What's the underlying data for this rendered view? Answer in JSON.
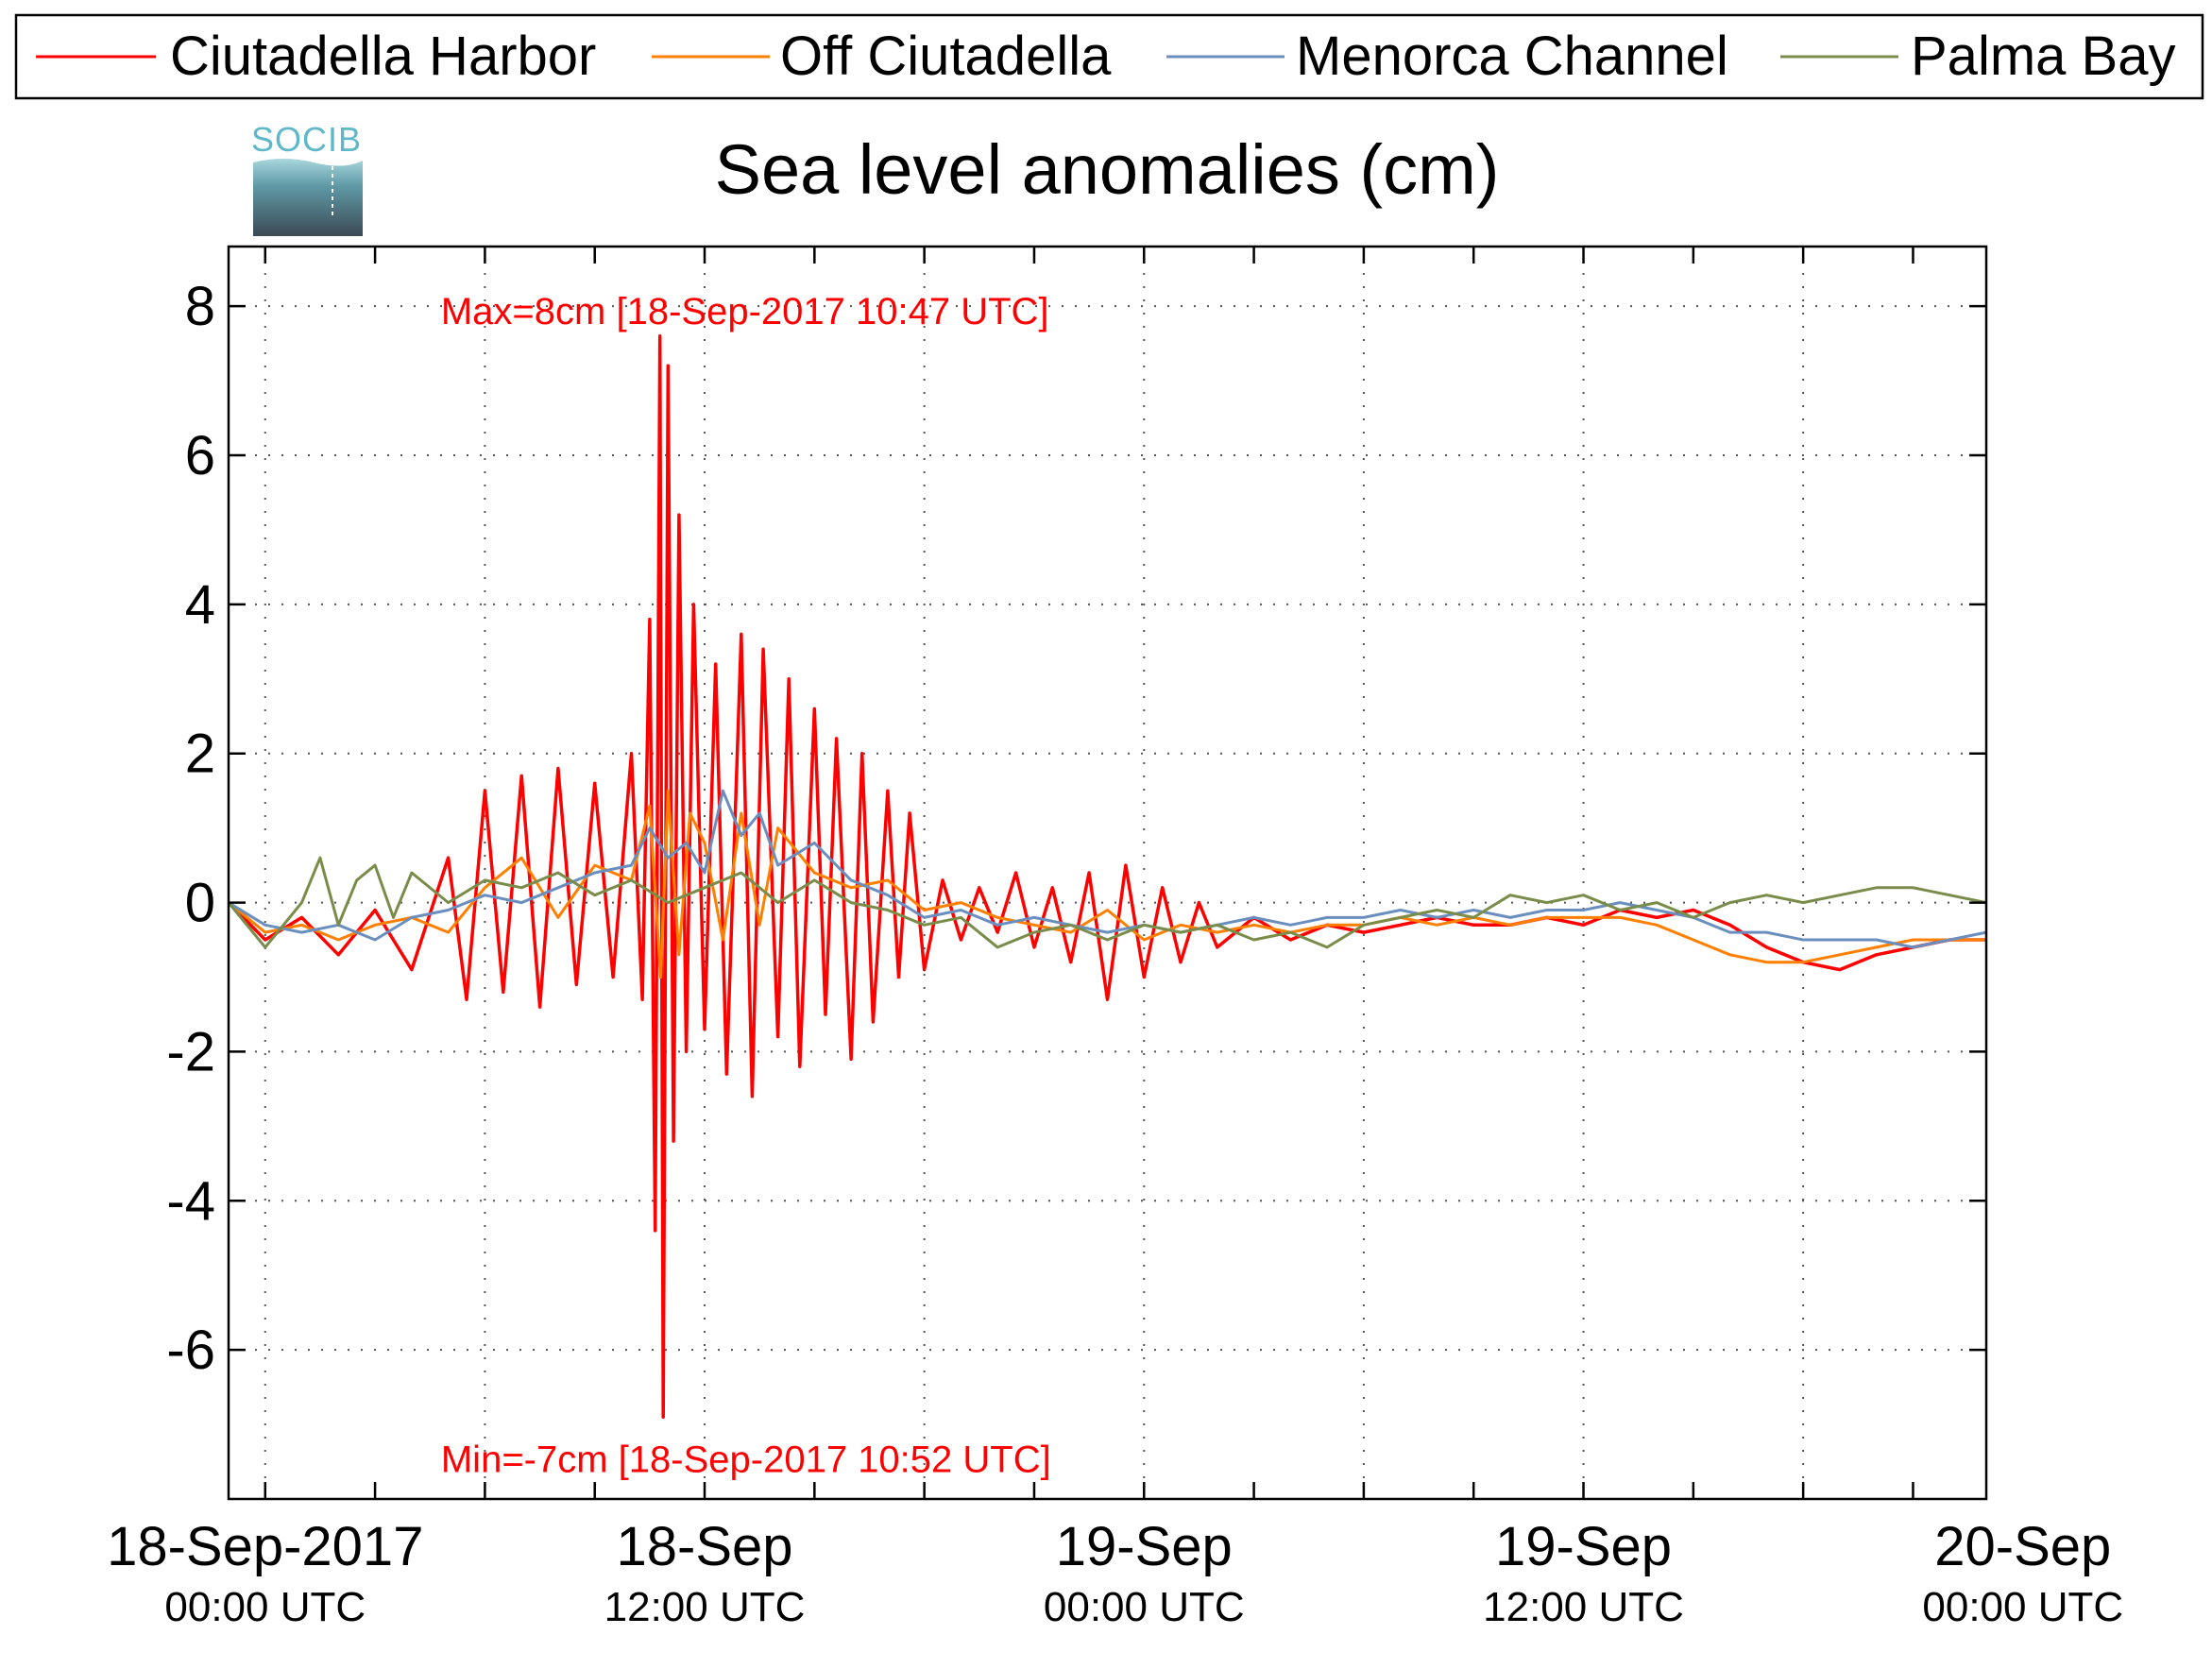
{
  "chart_data": {
    "type": "line",
    "title": "Sea level anomalies (cm)",
    "xlabel": "",
    "ylabel": "",
    "logo_text": "SOCIB",
    "x_unit": "hours since 18-Sep-2017 00:00 UTC",
    "xlim": [
      -1,
      47
    ],
    "ylim": [
      -8,
      8.8
    ],
    "grid": true,
    "legend_position": "top, outside",
    "yticks": [
      {
        "v": 8,
        "label": "8"
      },
      {
        "v": 6,
        "label": "6"
      },
      {
        "v": 4,
        "label": "4"
      },
      {
        "v": 2,
        "label": "2"
      },
      {
        "v": 0,
        "label": "0"
      },
      {
        "v": -2,
        "label": "-2"
      },
      {
        "v": -4,
        "label": "-4"
      },
      {
        "v": -6,
        "label": "-6"
      }
    ],
    "xgrid": [
      0,
      6,
      12,
      18,
      24,
      30,
      36,
      42,
      48
    ],
    "xminor": [
      3,
      9,
      15,
      21,
      27,
      33,
      39,
      45
    ],
    "xticks": [
      {
        "v": 0,
        "line1": "18-Sep-2017",
        "line2": "00:00 UTC"
      },
      {
        "v": 12,
        "line1": "18-Sep",
        "line2": "12:00 UTC"
      },
      {
        "v": 24,
        "line1": "19-Sep",
        "line2": "00:00 UTC"
      },
      {
        "v": 36,
        "line1": "19-Sep",
        "line2": "12:00 UTC"
      },
      {
        "v": 48,
        "line1": "20-Sep",
        "line2": "00:00 UTC"
      }
    ],
    "annotations": [
      {
        "text": "Max=8cm [18-Sep-2017 10:47 UTC]",
        "x": 4.8,
        "y": 8.0
      },
      {
        "text": "Min=-7cm [18-Sep-2017 10:52 UTC]",
        "x": 4.8,
        "y": -7.4
      }
    ],
    "series": [
      {
        "name": "Ciutadella Harbor",
        "color": "#ff0000",
        "x": [
          -1,
          0,
          1,
          2,
          3,
          4,
          5,
          5.5,
          6,
          6.5,
          7,
          7.5,
          8,
          8.5,
          9,
          9.5,
          10,
          10.3,
          10.5,
          10.65,
          10.78,
          10.87,
          11,
          11.15,
          11.3,
          11.5,
          11.7,
          12,
          12.3,
          12.6,
          13,
          13.3,
          13.6,
          14,
          14.3,
          14.6,
          15,
          15.3,
          15.6,
          16,
          16.3,
          16.6,
          17,
          17.3,
          17.6,
          18,
          18.5,
          19,
          19.5,
          20,
          20.5,
          21,
          21.5,
          22,
          22.5,
          23,
          23.5,
          24,
          24.5,
          25,
          25.5,
          26,
          27,
          28,
          29,
          30,
          31,
          32,
          33,
          34,
          35,
          36,
          37,
          38,
          39,
          40,
          41,
          42,
          43,
          44,
          45,
          46,
          47
        ],
        "y": [
          0.0,
          -0.5,
          -0.2,
          -0.7,
          -0.1,
          -0.9,
          0.6,
          -1.3,
          1.5,
          -1.2,
          1.7,
          -1.4,
          1.8,
          -1.1,
          1.6,
          -1.0,
          2.0,
          -1.3,
          3.8,
          -4.4,
          7.6,
          -6.9,
          7.2,
          -3.2,
          5.2,
          -2.0,
          4.0,
          -1.7,
          3.2,
          -2.3,
          3.6,
          -2.6,
          3.4,
          -1.8,
          3.0,
          -2.2,
          2.6,
          -1.5,
          2.2,
          -2.1,
          2.0,
          -1.6,
          1.5,
          -1.0,
          1.2,
          -0.9,
          0.3,
          -0.5,
          0.2,
          -0.4,
          0.4,
          -0.6,
          0.2,
          -0.8,
          0.4,
          -1.3,
          0.5,
          -1.0,
          0.2,
          -0.8,
          0.0,
          -0.6,
          -0.2,
          -0.5,
          -0.3,
          -0.4,
          -0.3,
          -0.2,
          -0.3,
          -0.3,
          -0.2,
          -0.3,
          -0.1,
          -0.2,
          -0.1,
          -0.3,
          -0.6,
          -0.8,
          -0.9,
          -0.7,
          -0.6,
          -0.5,
          -0.5
        ]
      },
      {
        "name": "Off Ciutadella",
        "color": "#ff7f00",
        "x": [
          -1,
          0,
          1,
          2,
          3,
          4,
          5,
          6,
          7,
          8,
          9,
          10,
          10.5,
          10.8,
          11,
          11.3,
          11.6,
          12,
          12.5,
          13,
          13.5,
          14,
          15,
          16,
          17,
          18,
          19,
          20,
          21,
          22,
          23,
          24,
          25,
          26,
          27,
          28,
          29,
          30,
          31,
          32,
          33,
          34,
          35,
          36,
          37,
          38,
          39,
          40,
          41,
          42,
          43,
          44,
          45,
          46,
          47
        ],
        "y": [
          0.0,
          -0.4,
          -0.3,
          -0.5,
          -0.3,
          -0.2,
          -0.4,
          0.2,
          0.6,
          -0.2,
          0.5,
          0.3,
          1.3,
          -1.0,
          1.5,
          -0.7,
          1.2,
          0.8,
          -0.5,
          1.2,
          -0.3,
          1.0,
          0.4,
          0.2,
          0.3,
          -0.1,
          0.0,
          -0.2,
          -0.3,
          -0.4,
          -0.1,
          -0.5,
          -0.3,
          -0.4,
          -0.3,
          -0.4,
          -0.3,
          -0.3,
          -0.2,
          -0.3,
          -0.2,
          -0.3,
          -0.2,
          -0.2,
          -0.2,
          -0.3,
          -0.5,
          -0.7,
          -0.8,
          -0.8,
          -0.7,
          -0.6,
          -0.5,
          -0.5,
          -0.5
        ]
      },
      {
        "name": "Menorca Channel",
        "color": "#6a8fbf",
        "x": [
          -1,
          0,
          1,
          2,
          3,
          4,
          5,
          6,
          7,
          8,
          9,
          10,
          10.5,
          11,
          11.5,
          12,
          12.5,
          13,
          13.5,
          14,
          15,
          16,
          17,
          18,
          19,
          20,
          21,
          22,
          23,
          24,
          25,
          26,
          27,
          28,
          29,
          30,
          31,
          32,
          33,
          34,
          35,
          36,
          37,
          38,
          39,
          40,
          41,
          42,
          43,
          44,
          45,
          46,
          47
        ],
        "y": [
          0.0,
          -0.3,
          -0.4,
          -0.3,
          -0.5,
          -0.2,
          -0.1,
          0.1,
          0.0,
          0.2,
          0.4,
          0.5,
          1.0,
          0.6,
          0.8,
          0.4,
          1.5,
          0.9,
          1.2,
          0.5,
          0.8,
          0.3,
          0.1,
          -0.2,
          -0.1,
          -0.3,
          -0.2,
          -0.3,
          -0.4,
          -0.3,
          -0.4,
          -0.3,
          -0.2,
          -0.3,
          -0.2,
          -0.2,
          -0.1,
          -0.2,
          -0.1,
          -0.2,
          -0.1,
          -0.1,
          0.0,
          -0.1,
          -0.2,
          -0.4,
          -0.4,
          -0.5,
          -0.5,
          -0.5,
          -0.6,
          -0.5,
          -0.4
        ]
      },
      {
        "name": "Palma Bay",
        "color": "#7a8c4a",
        "x": [
          -1,
          0,
          1,
          1.5,
          2,
          2.5,
          3,
          3.5,
          4,
          5,
          6,
          7,
          8,
          9,
          10,
          11,
          12,
          13,
          14,
          15,
          16,
          17,
          18,
          19,
          20,
          21,
          22,
          23,
          24,
          25,
          26,
          27,
          28,
          29,
          30,
          31,
          32,
          33,
          34,
          35,
          36,
          37,
          38,
          39,
          40,
          41,
          42,
          43,
          44,
          45,
          46,
          47
        ],
        "y": [
          0.0,
          -0.6,
          0.0,
          0.6,
          -0.3,
          0.3,
          0.5,
          -0.2,
          0.4,
          0.0,
          0.3,
          0.2,
          0.4,
          0.1,
          0.3,
          0.0,
          0.2,
          0.4,
          0.0,
          0.3,
          0.0,
          -0.1,
          -0.3,
          -0.2,
          -0.6,
          -0.4,
          -0.3,
          -0.5,
          -0.3,
          -0.4,
          -0.3,
          -0.5,
          -0.4,
          -0.6,
          -0.3,
          -0.2,
          -0.1,
          -0.2,
          0.1,
          0.0,
          0.1,
          -0.1,
          0.0,
          -0.2,
          0.0,
          0.1,
          0.0,
          0.1,
          0.2,
          0.2,
          0.1,
          0.0
        ]
      }
    ]
  }
}
